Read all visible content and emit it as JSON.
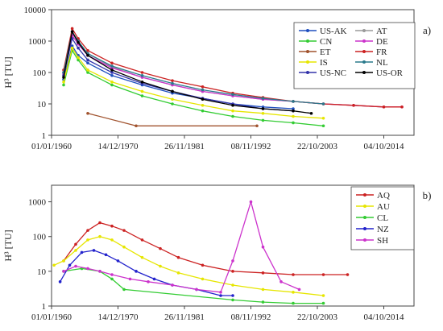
{
  "chart_data": [
    {
      "type": "line",
      "panel_label": "a)",
      "ylabel": "H³ [TU]",
      "yscale": "log",
      "ylim": [
        1,
        10000
      ],
      "y_ticks": [
        "1",
        "10",
        "100",
        "1000",
        "10000"
      ],
      "x_ticks": [
        "01/01/1960",
        "14/12/1970",
        "26/11/1981",
        "08/11/1992",
        "22/10/2003",
        "04/10/2014"
      ],
      "xlim": [
        "1960-01-01",
        "2020-01-01"
      ],
      "grid": false,
      "legend_position": "top-right",
      "legend_columns": 2,
      "series": [
        {
          "name": "US-AK",
          "color": "#1f4fbf",
          "x": [
            "1962-01-01",
            "1963-06-01",
            "1964-06-01",
            "1966-01-01",
            "1970-01-01",
            "1975-01-01",
            "1980-01-01",
            "1985-01-01",
            "1990-01-01",
            "1995-01-01",
            "2000-01-01"
          ],
          "y": [
            60,
            700,
            350,
            200,
            80,
            40,
            22,
            15,
            10,
            8,
            7
          ]
        },
        {
          "name": "AT",
          "color": "#9a9a9a",
          "x": [
            "1962-01-01",
            "1963-06-01",
            "1964-06-01",
            "1966-01-01",
            "1970-01-01",
            "1975-01-01",
            "1980-01-01",
            "1985-01-01",
            "1990-01-01",
            "1995-01-01",
            "2000-01-01",
            "2005-01-01",
            "2010-01-01",
            "2015-01-01"
          ],
          "y": [
            100,
            1800,
            900,
            400,
            150,
            70,
            40,
            25,
            18,
            14,
            12,
            10,
            9,
            8
          ]
        },
        {
          "name": "CN",
          "color": "#33cc33",
          "x": [
            "1962-01-01",
            "1963-06-01",
            "1964-06-01",
            "1966-01-01",
            "1970-01-01",
            "1975-01-01",
            "1980-01-01",
            "1985-01-01",
            "1990-01-01",
            "1995-01-01",
            "2000-01-01",
            "2005-01-01"
          ],
          "y": [
            40,
            500,
            250,
            100,
            40,
            18,
            10,
            6,
            4,
            3,
            2.5,
            2
          ]
        },
        {
          "name": "DE",
          "color": "#cc33cc",
          "x": [
            "1962-01-01",
            "1963-06-01",
            "1964-06-01",
            "1966-01-01",
            "1970-01-01",
            "1975-01-01",
            "1980-01-01",
            "1985-01-01",
            "1990-01-01",
            "1995-01-01",
            "2000-01-01",
            "2005-01-01",
            "2010-01-01",
            "2015-01-01",
            "2018-01-01"
          ],
          "y": [
            90,
            1500,
            800,
            350,
            140,
            70,
            40,
            25,
            18,
            14,
            12,
            10,
            9,
            8,
            8
          ]
        },
        {
          "name": "ET",
          "color": "#a0522d",
          "x": [
            "1966-01-01",
            "1974-01-01",
            "1994-01-01"
          ],
          "y": [
            5,
            2,
            2
          ]
        },
        {
          "name": "FR",
          "color": "#cc2222",
          "x": [
            "1962-01-01",
            "1963-06-01",
            "1964-06-01",
            "1966-01-01",
            "1970-01-01",
            "1975-01-01",
            "1980-01-01",
            "1985-01-01",
            "1990-01-01",
            "1995-01-01",
            "2000-01-01",
            "2005-01-01",
            "2010-01-01",
            "2015-01-01",
            "2018-01-01"
          ],
          "y": [
            120,
            2500,
            1200,
            500,
            200,
            100,
            55,
            35,
            22,
            16,
            12,
            10,
            9,
            8,
            8
          ]
        },
        {
          "name": "IS",
          "color": "#e6e600",
          "x": [
            "1962-01-01",
            "1963-06-01",
            "1964-06-01",
            "1966-01-01",
            "1970-01-01",
            "1975-01-01",
            "1980-01-01",
            "1985-01-01",
            "1990-01-01",
            "1995-01-01",
            "2000-01-01",
            "2005-01-01"
          ],
          "y": [
            50,
            600,
            300,
            120,
            50,
            25,
            14,
            9,
            6,
            5,
            4,
            3.5
          ]
        },
        {
          "name": "NL",
          "color": "#2a7a8c",
          "x": [
            "1962-01-01",
            "1963-06-01",
            "1964-06-01",
            "1966-01-01",
            "1970-01-01",
            "1975-01-01",
            "1980-01-01",
            "1985-01-01",
            "1990-01-01",
            "1995-01-01",
            "2000-01-01",
            "2005-01-01"
          ],
          "y": [
            100,
            2000,
            1000,
            400,
            160,
            80,
            45,
            28,
            20,
            15,
            12,
            10
          ]
        },
        {
          "name": "US-NC",
          "color": "#3333aa",
          "x": [
            "1962-01-01",
            "1963-06-01",
            "1964-06-01",
            "1966-01-01",
            "1970-01-01",
            "1975-01-01",
            "1980-01-01",
            "1985-01-01",
            "1990-01-01",
            "1995-01-01",
            "2000-01-01"
          ],
          "y": [
            80,
            1200,
            600,
            250,
            100,
            45,
            25,
            15,
            10,
            7,
            6
          ]
        },
        {
          "name": "US-OR",
          "color": "#000000",
          "x": [
            "1962-01-01",
            "1963-06-01",
            "1964-06-01",
            "1966-01-01",
            "1970-01-01",
            "1975-01-01",
            "1980-01-01",
            "1985-01-01",
            "1990-01-01",
            "1995-01-01",
            "2000-01-01",
            "2003-01-01"
          ],
          "y": [
            70,
            2000,
            900,
            350,
            120,
            50,
            25,
            14,
            9,
            7,
            6,
            5
          ]
        }
      ]
    },
    {
      "type": "line",
      "panel_label": "b)",
      "ylabel": "H³ [TU]",
      "yscale": "log",
      "ylim": [
        1,
        3000
      ],
      "y_ticks": [
        "1",
        "10",
        "100",
        "1000"
      ],
      "x_ticks": [
        "01/01/1960",
        "14/12/1970",
        "26/11/1981",
        "08/11/1992",
        "22/10/2003",
        "04/10/2014"
      ],
      "xlim": [
        "1960-01-01",
        "2020-01-01"
      ],
      "grid": false,
      "legend_position": "top-right",
      "legend_columns": 1,
      "series": [
        {
          "name": "AQ",
          "color": "#cc2222",
          "x": [
            "1962-01-01",
            "1964-01-01",
            "1966-01-01",
            "1968-01-01",
            "1970-01-01",
            "1972-01-01",
            "1975-01-01",
            "1978-01-01",
            "1981-01-01",
            "1985-01-01",
            "1990-01-01",
            "1995-01-01",
            "2000-01-01",
            "2005-01-01",
            "2009-01-01"
          ],
          "y": [
            20,
            60,
            150,
            250,
            200,
            150,
            80,
            45,
            25,
            15,
            10,
            9,
            8,
            8,
            8
          ]
        },
        {
          "name": "AU",
          "color": "#e6e600",
          "x": [
            "1960-06-01",
            "1962-01-01",
            "1964-01-01",
            "1966-01-01",
            "1968-01-01",
            "1970-01-01",
            "1972-01-01",
            "1975-01-01",
            "1978-01-01",
            "1981-01-01",
            "1985-01-01",
            "1990-01-01",
            "1995-01-01",
            "2000-01-01",
            "2005-01-01"
          ],
          "y": [
            15,
            20,
            40,
            80,
            100,
            80,
            50,
            25,
            14,
            9,
            6,
            4,
            3,
            2.5,
            2
          ]
        },
        {
          "name": "CL",
          "color": "#33cc33",
          "x": [
            "1962-01-01",
            "1965-01-01",
            "1968-01-01",
            "1970-01-01",
            "1972-01-01",
            "1990-01-01",
            "1995-01-01",
            "2000-01-01",
            "2005-01-01"
          ],
          "y": [
            10,
            12,
            10,
            6,
            3,
            1.5,
            1.3,
            1.2,
            1.2
          ]
        },
        {
          "name": "NZ",
          "color": "#2222cc",
          "x": [
            "1961-06-01",
            "1963-01-01",
            "1965-01-01",
            "1967-01-01",
            "1969-01-01",
            "1971-01-01",
            "1974-01-01",
            "1977-01-01",
            "1980-01-01",
            "1984-01-01",
            "1988-01-01",
            "1990-01-01"
          ],
          "y": [
            5,
            15,
            35,
            40,
            30,
            20,
            10,
            6,
            4,
            3,
            2,
            2
          ]
        },
        {
          "name": "SH",
          "color": "#cc33cc",
          "x": [
            "1962-01-01",
            "1964-01-01",
            "1966-01-01",
            "1968-01-01",
            "1970-01-01",
            "1973-01-01",
            "1976-01-01",
            "1980-01-01",
            "1984-01-01",
            "1988-01-01",
            "1990-01-01",
            "1993-01-01",
            "1995-01-01",
            "1998-01-01",
            "2001-01-01"
          ],
          "y": [
            10,
            14,
            12,
            10,
            8,
            6,
            5,
            4,
            3,
            2.5,
            20,
            1000,
            50,
            5,
            3
          ]
        }
      ]
    }
  ]
}
